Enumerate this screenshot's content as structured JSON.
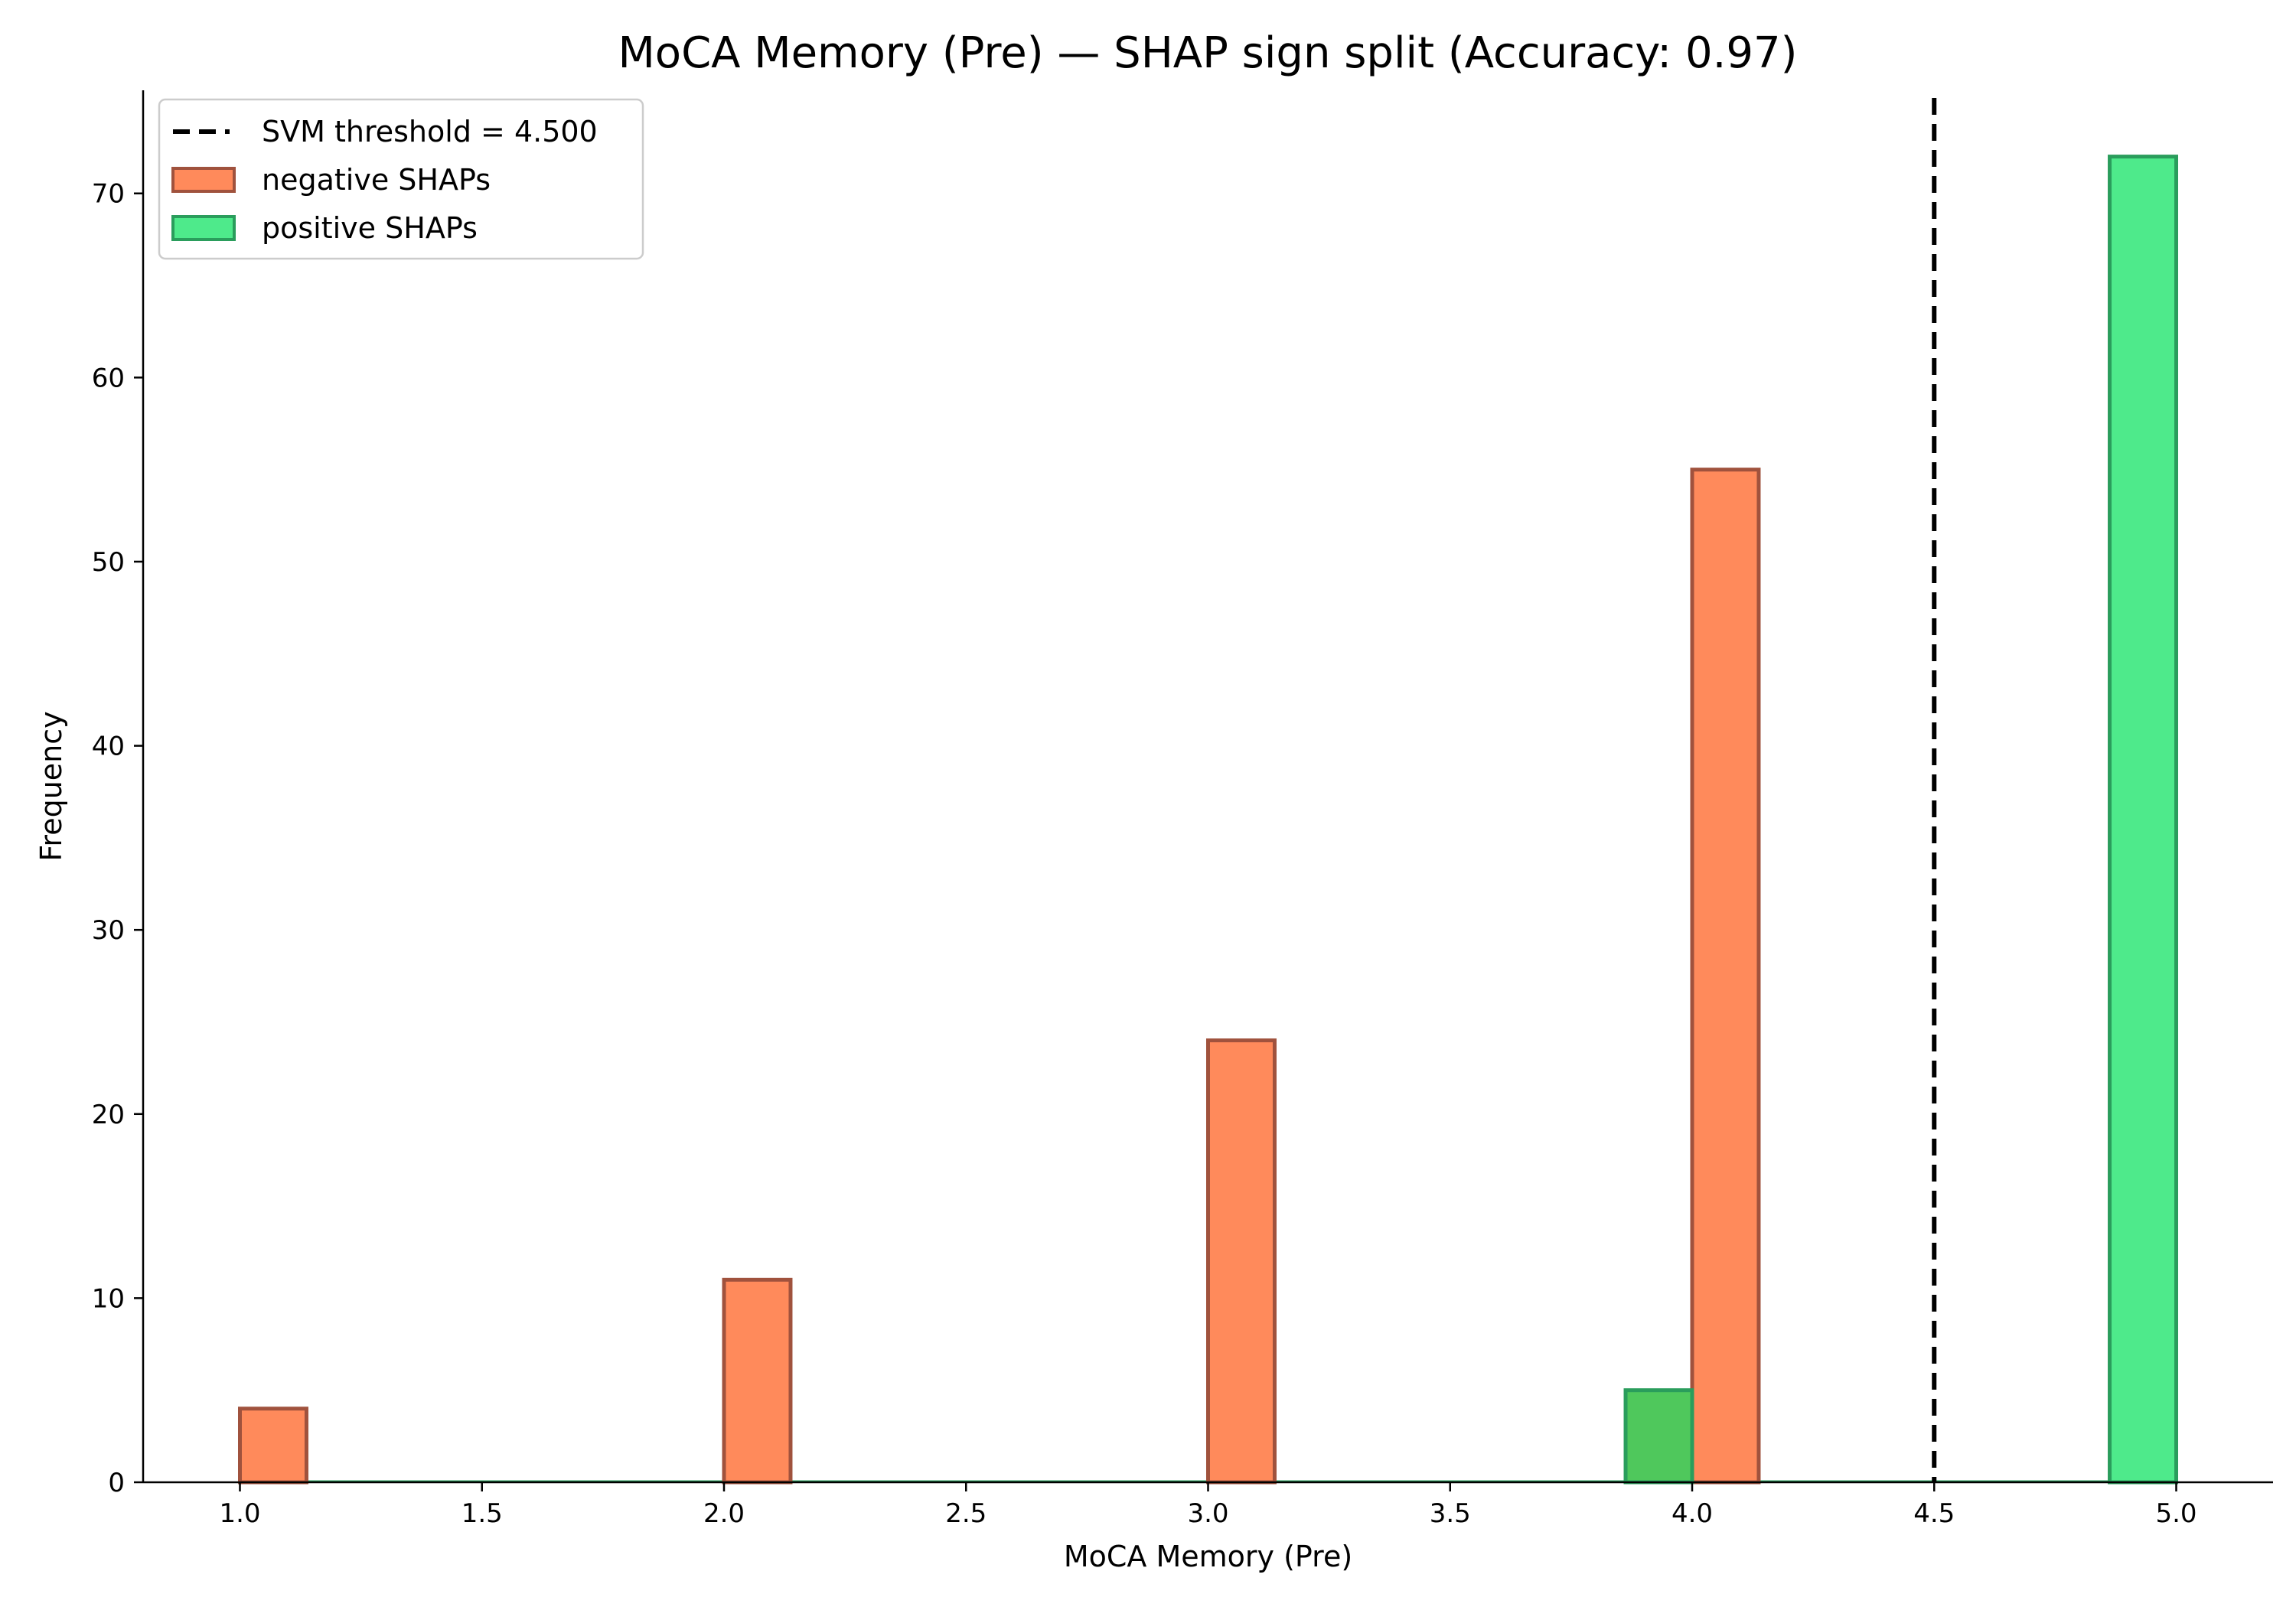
{
  "chart_data": {
    "type": "bar",
    "title": "MoCA Memory (Pre) — SHAP sign split (Accuracy: 0.97)",
    "xlabel": "MoCA Memory (Pre)",
    "ylabel": "Frequency",
    "xlim": [
      0.8,
      5.2
    ],
    "ylim": [
      0,
      75.6
    ],
    "x_ticks": [
      "1.0",
      "1.5",
      "2.0",
      "2.5",
      "3.0",
      "3.5",
      "4.0",
      "4.5",
      "5.0"
    ],
    "y_ticks": [
      "0",
      "10",
      "20",
      "30",
      "40",
      "50",
      "60",
      "70"
    ],
    "bin_width": 0.1375,
    "grid": false,
    "legend_position": "top-left",
    "series": [
      {
        "name": "negative SHAPs",
        "color": "#ff8a5b",
        "edge_color": "#a0523d",
        "x": [
          1.0,
          2.0,
          3.0,
          4.0
        ],
        "values": [
          4,
          11,
          24,
          55
        ]
      },
      {
        "name": "positive SHAPs",
        "color": "#4eea8b",
        "edge_color": "#2a9d5c",
        "x": [
          3.8625,
          4.8625
        ],
        "values": [
          5,
          72
        ]
      }
    ],
    "overlap_color": "#4fc85c",
    "threshold": {
      "label": "SVM threshold = 4.500",
      "value": 4.5
    }
  }
}
